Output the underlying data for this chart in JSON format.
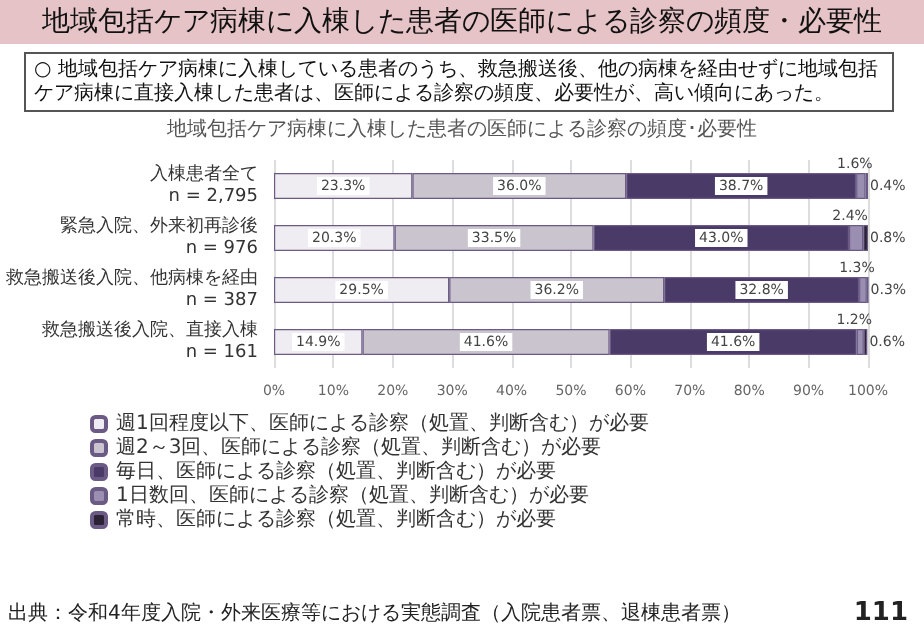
{
  "chart_data": {
    "type": "bar",
    "orientation": "horizontal",
    "stacked": true,
    "title": "地域包括ケア病棟に入棟した患者の医師による診察の頻度・必要性",
    "subtitle": "○ 地域包括ケア病棟に入棟している患者のうち、救急搬送後、他の病棟を経由せずに地域包括ケア病棟に直接入棟した患者は、医師による診察の頻度、必要性が、高い傾向にあった。",
    "annotations": [
      "地域包括ケア病棟に入棟した患者の医師による診察の頻度･必要性",
      "出典：令和4年度入院・外来医療等における実態調査（入院患者票、退棟患者票）",
      "111"
    ],
    "categories": [
      "入棟患者全て\nn = 2,795",
      "緊急入院、外来初再診後\nn = 976",
      "救急搬送後入院、他病棟を経由\nn = 387",
      "救急搬送後入院、直接入棟\nn = 161"
    ],
    "series": [
      {
        "name": "週1回程度以下、医師による診察（処置、判断含む）が必要",
        "color": "#efedf1",
        "values": [
          23.3,
          20.3,
          29.5,
          14.9
        ],
        "value_labels": [
          "23.3%",
          "20.3%",
          "29.5%",
          "14.9%"
        ]
      },
      {
        "name": "週2～3回、医師による診察（処置、判断含む）が必要",
        "color": "#c9c4cd",
        "values": [
          36.0,
          33.5,
          36.2,
          41.6
        ],
        "value_labels": [
          "36.0%",
          "33.5%",
          "36.2%",
          "41.6%"
        ]
      },
      {
        "name": "毎日、医師による診察（処置、判断含む）が必要",
        "color": "#4a3a68",
        "values": [
          38.7,
          43.0,
          32.8,
          41.6
        ],
        "value_labels": [
          "38.7%",
          "43.0%",
          "32.8%",
          "41.6%"
        ]
      },
      {
        "name": "1日数回、医師による診察（処置、判断含む）が必要",
        "color": "#9a8fb0",
        "values": [
          1.6,
          2.4,
          1.3,
          1.2
        ],
        "value_labels": [
          "1.6%",
          "2.4%",
          "1.3%",
          "1.2%"
        ]
      },
      {
        "name": "常時、医師による診察（処置、判断含む）が必要",
        "color": "#2b2233",
        "values": [
          0.4,
          0.8,
          0.3,
          0.6
        ],
        "value_labels": [
          "0.4%",
          "0.8%",
          "0.3%",
          "0.6%"
        ]
      }
    ],
    "xlim": [
      0,
      100
    ],
    "xticks": [
      {
        "value": 0,
        "label": "0%"
      },
      {
        "value": 10,
        "label": "10%"
      },
      {
        "value": 20,
        "label": "20%"
      },
      {
        "value": 30,
        "label": "30%"
      },
      {
        "value": 40,
        "label": "40%"
      },
      {
        "value": 50,
        "label": "50%"
      },
      {
        "value": 60,
        "label": "60%"
      },
      {
        "value": 70,
        "label": "70%"
      },
      {
        "value": 80,
        "label": "80%"
      },
      {
        "value": 90,
        "label": "90%"
      },
      {
        "value": 100,
        "label": "100%"
      }
    ],
    "grid": "x",
    "legend": "bottom"
  }
}
